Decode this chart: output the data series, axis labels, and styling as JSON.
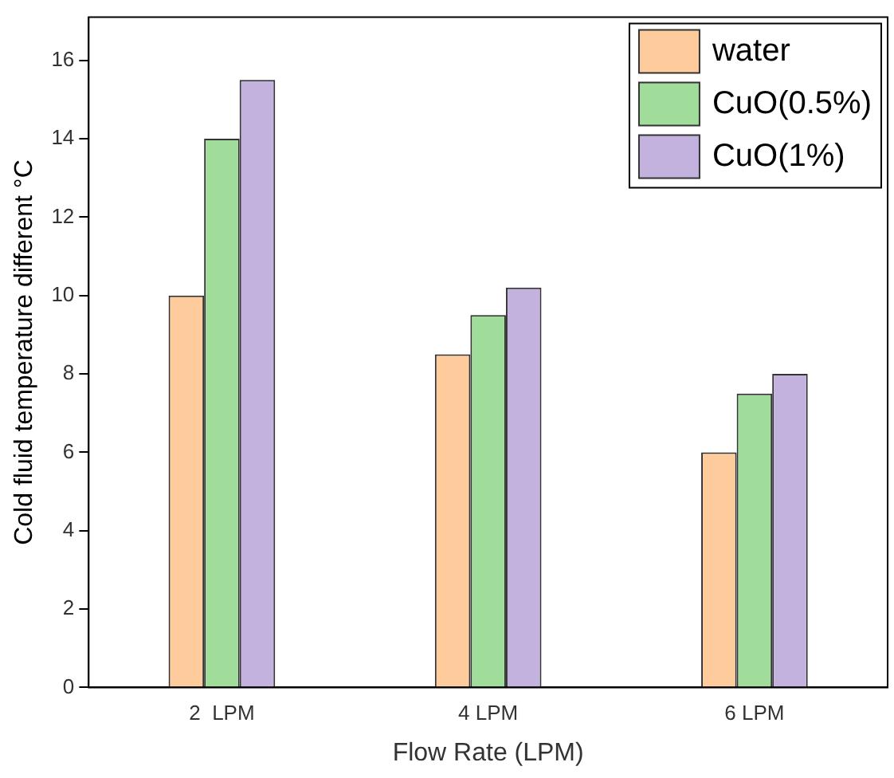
{
  "chart_data": {
    "type": "bar",
    "xlabel": "Flow Rate (LPM)",
    "ylabel": "Cold fluid temperature different °C",
    "categories": [
      "2  LPM",
      "4 LPM",
      "6 LPM"
    ],
    "series": [
      {
        "name": "water",
        "color": "#fdcb9c",
        "values": [
          10,
          8.5,
          6
        ]
      },
      {
        "name": "CuO(0.5%)",
        "color": "#a0dc9a",
        "values": [
          14,
          9.5,
          7.5
        ]
      },
      {
        "name": "CuO(1%)",
        "color": "#c3b2dd",
        "values": [
          15.5,
          10.2,
          8
        ]
      }
    ],
    "ylim": [
      0,
      17.1
    ],
    "yticks": [
      0,
      2,
      4,
      6,
      8,
      10,
      12,
      14,
      16
    ],
    "grid": false,
    "legend": "top right"
  }
}
